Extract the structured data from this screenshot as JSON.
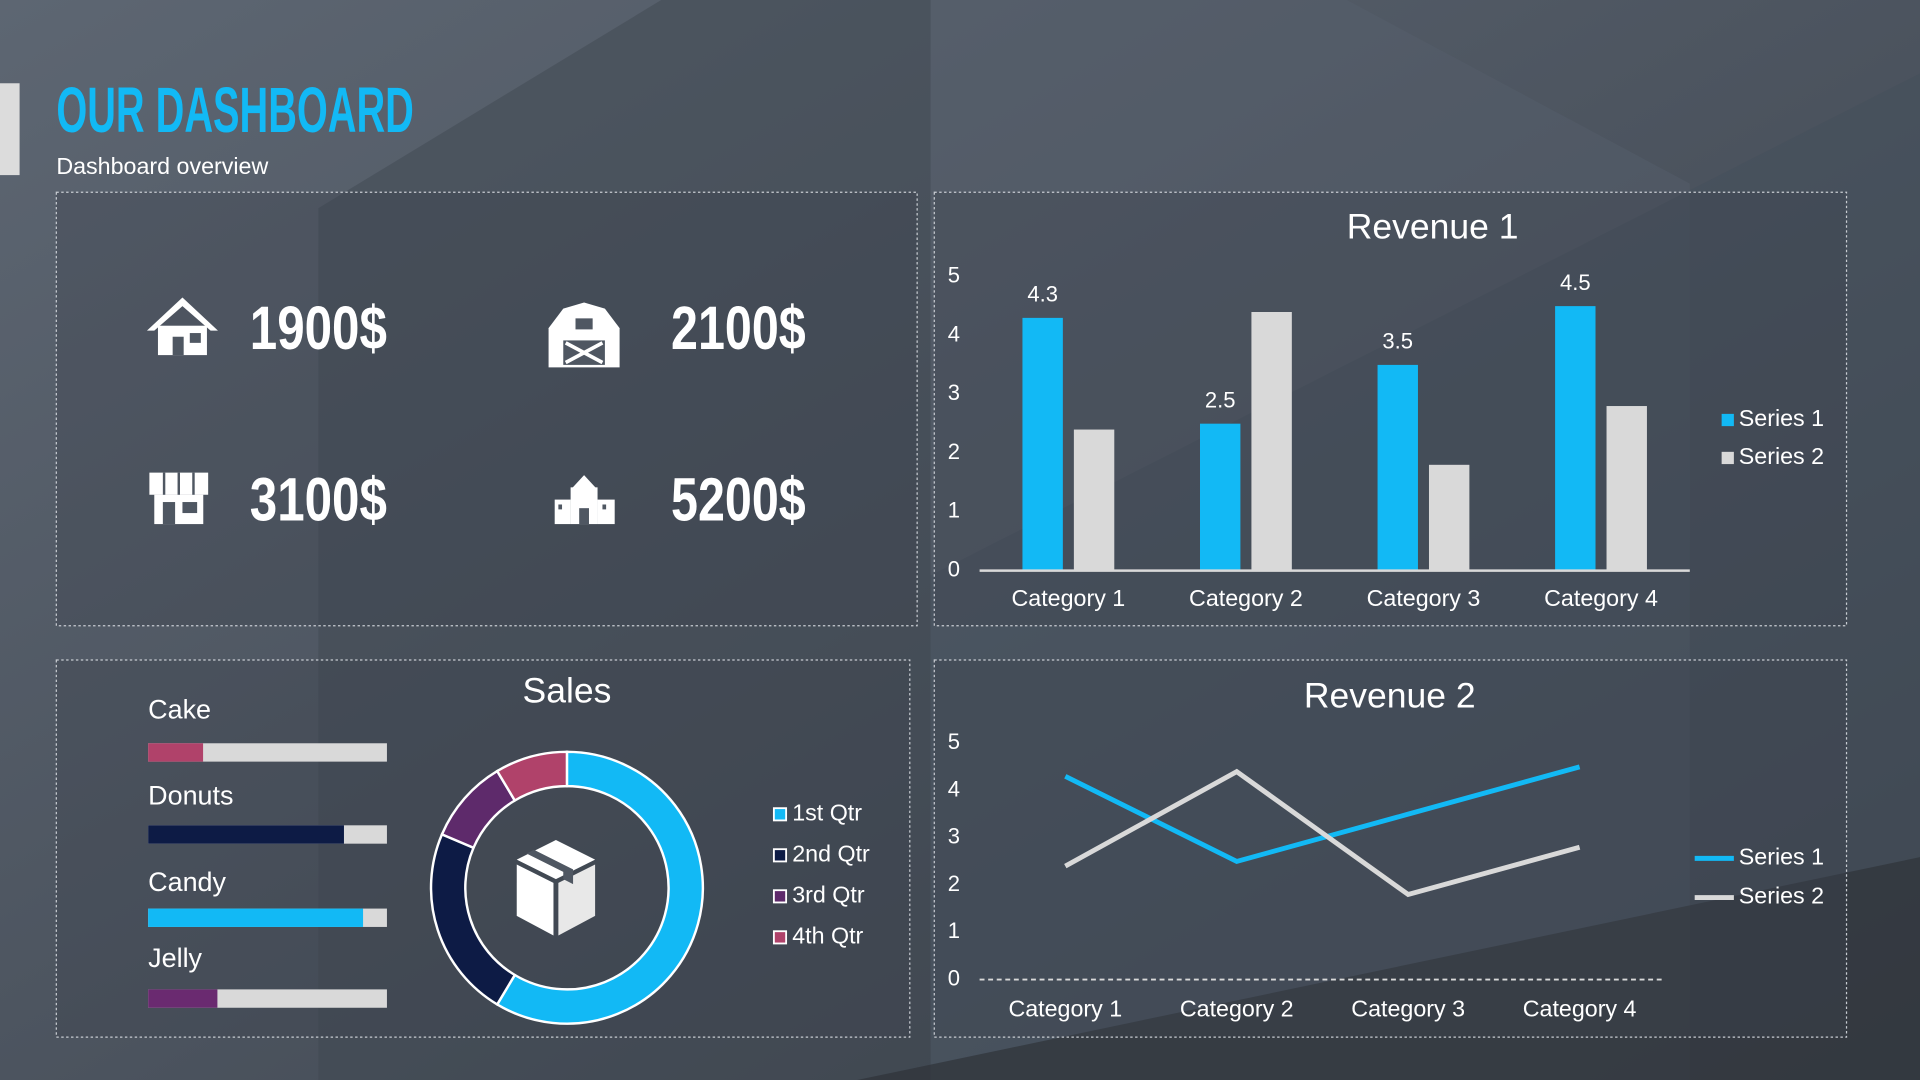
{
  "header": {
    "title": "OUR DASHBOARD",
    "subtitle": "Dashboard overview"
  },
  "kpis": [
    {
      "value": "1900$"
    },
    {
      "value": "2100$"
    },
    {
      "value": "3100$"
    },
    {
      "value": "5200$"
    }
  ],
  "chart_data": [
    {
      "type": "bar",
      "title": "Revenue 1",
      "categories": [
        "Category 1",
        "Category 2",
        "Category 3",
        "Category 4"
      ],
      "series": [
        {
          "name": "Series 1",
          "color": "#12b9f5",
          "values": [
            4.3,
            2.5,
            3.5,
            4.5
          ],
          "show_values": true
        },
        {
          "name": "Series 2",
          "color": "#d9d9d9",
          "values": [
            2.4,
            4.4,
            1.8,
            2.8
          ]
        }
      ],
      "ylim": [
        0,
        5
      ],
      "yticks": [
        0,
        1,
        2,
        3,
        4,
        5
      ],
      "grid": false,
      "legend": "right"
    },
    {
      "type": "progress",
      "categories": [
        "Cake",
        "Donuts",
        "Candy",
        "Jelly"
      ],
      "values": [
        23,
        82,
        90,
        29
      ],
      "colors": [
        "#b0426a",
        "#0d1b45",
        "#12b9f5",
        "#6a2a70"
      ],
      "track_color": "#d9d9d9",
      "xlim": [
        0,
        100
      ]
    },
    {
      "type": "donut",
      "title": "Sales",
      "categories": [
        "1st Qtr",
        "2nd Qtr",
        "3rd Qtr",
        "4th Qtr"
      ],
      "values": [
        8.2,
        3.2,
        1.4,
        1.2
      ],
      "colors": [
        "#12b9f5",
        "#0d1b45",
        "#5e2a6b",
        "#b0426a"
      ],
      "legend": "right"
    },
    {
      "type": "line",
      "title": "Revenue 2",
      "categories": [
        "Category 1",
        "Category 2",
        "Category 3",
        "Category 4"
      ],
      "series": [
        {
          "name": "Series 1",
          "color": "#12b9f5",
          "values": [
            4.3,
            2.5,
            3.5,
            4.5
          ]
        },
        {
          "name": "Series 2",
          "color": "#d9d9d9",
          "values": [
            2.4,
            4.4,
            1.8,
            2.8
          ]
        }
      ],
      "ylim": [
        0,
        5
      ],
      "yticks": [
        0,
        1,
        2,
        3,
        4,
        5
      ],
      "grid": false,
      "legend": "right"
    }
  ]
}
